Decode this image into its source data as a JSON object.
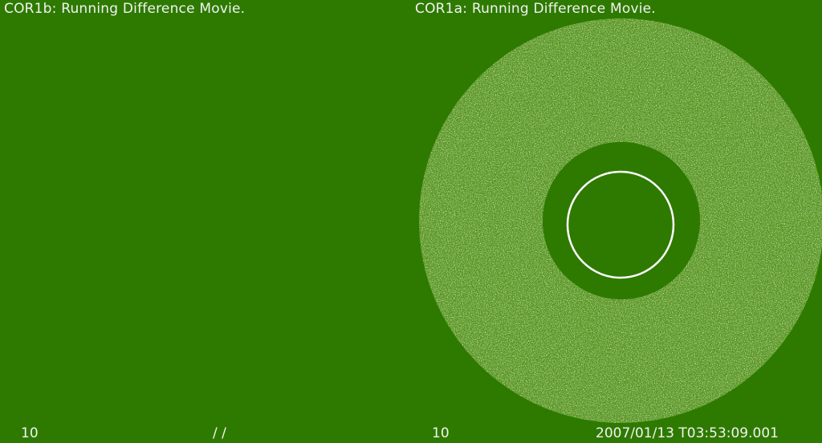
{
  "left_panel": {
    "title": "COR1b: Running Difference Movie.",
    "frame_number": "10",
    "timestamp": "/ /"
  },
  "right_panel": {
    "title": "COR1a: Running Difference Movie.",
    "frame_number": "10",
    "timestamp": "2007/01/13 T03:53:09.001"
  },
  "colors": {
    "background": "#2e7a00",
    "text": "#f2f2f2",
    "sun_circle": "#ffffff"
  }
}
